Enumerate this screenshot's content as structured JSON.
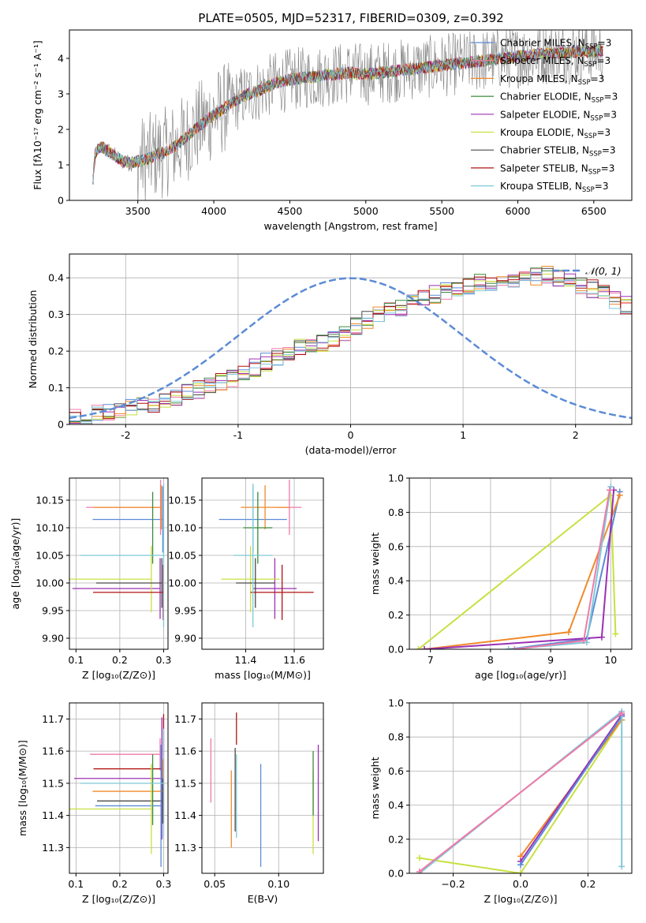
{
  "figure": {
    "title": "PLATE=0505, MJD=52317, FIBERID=0309, z=0.392"
  },
  "colors": {
    "chabrier_miles": "#5b8bd6",
    "salpeter_miles": "#f07aa8",
    "kroupa_miles": "#f08a2a",
    "chabrier_elodie": "#3c8a3c",
    "salpeter_elodie": "#9b30b5",
    "kroupa_elodie": "#c8e040",
    "chabrier_stelib": "#4a4a4a",
    "salpeter_stelib": "#b01010",
    "kroupa_stelib": "#7ec8d8",
    "noise": "#808080",
    "normal": "#5b8bd6",
    "grid": "#b0b0b0"
  },
  "chart_data": [
    {
      "id": "spectrum",
      "type": "line",
      "xlabel": "wavelength [Angstrom, rest frame]",
      "ylabel": "Flux [fλ10⁻¹⁷ erg cm⁻² s⁻¹ A⁻¹]",
      "xlim": [
        3050,
        6750
      ],
      "ylim": [
        0,
        4.8
      ],
      "xticks": [
        "3500",
        "4000",
        "4500",
        "5000",
        "5500",
        "6000",
        "6500"
      ],
      "yticks": [
        "0",
        "1",
        "2",
        "3",
        "4"
      ],
      "grid": false,
      "legend_position": "top-right",
      "continuum": {
        "x": [
          3200,
          3220,
          3260,
          3300,
          3350,
          3400,
          3450,
          3500,
          3560,
          3620,
          3680,
          3740,
          3800,
          3860,
          3920,
          3980,
          4040,
          4100,
          4200,
          4300,
          4400,
          4500,
          4600,
          4700,
          4800,
          4900,
          5000,
          5100,
          5200,
          5300,
          5400,
          5500,
          5600,
          5700,
          5800,
          5900,
          6000,
          6100,
          6200,
          6300,
          6400,
          6500
        ],
        "y": [
          0.3,
          1.35,
          1.5,
          1.4,
          1.25,
          1.1,
          1.05,
          1.1,
          1.15,
          1.3,
          1.35,
          1.5,
          1.7,
          1.95,
          2.15,
          2.35,
          2.5,
          2.7,
          2.95,
          3.1,
          3.3,
          3.4,
          3.45,
          3.5,
          3.55,
          3.6,
          3.55,
          3.6,
          3.65,
          3.7,
          3.75,
          3.8,
          3.85,
          3.9,
          3.95,
          4.0,
          4.05,
          4.1,
          4.15,
          4.15,
          4.2,
          4.2
        ]
      },
      "series": [
        {
          "name": "Chabrier MILES, N_SSP=3",
          "color_key": "chabrier_miles"
        },
        {
          "name": "Salpeter MILES, N_SSP=3",
          "color_key": "salpeter_miles"
        },
        {
          "name": "Kroupa MILES, N_SSP=3",
          "color_key": "kroupa_miles"
        },
        {
          "name": "Chabrier ELODIE, N_SSP=3",
          "color_key": "chabrier_elodie"
        },
        {
          "name": "Salpeter ELODIE, N_SSP=3",
          "color_key": "salpeter_elodie"
        },
        {
          "name": "Kroupa ELODIE, N_SSP=3",
          "color_key": "kroupa_elodie"
        },
        {
          "name": "Chabrier STELIB, N_SSP=3",
          "color_key": "chabrier_stelib"
        },
        {
          "name": "Salpeter STELIB, N_SSP=3",
          "color_key": "salpeter_stelib"
        },
        {
          "name": "Kroupa STELIB, N_SSP=3",
          "color_key": "kroupa_stelib"
        }
      ]
    },
    {
      "id": "residuals",
      "type": "histogram",
      "xlabel": "(data-model)/error",
      "ylabel": "Normed distribution",
      "xlim": [
        -2.5,
        2.5
      ],
      "ylim": [
        0,
        0.465
      ],
      "xticks": [
        -2,
        -1,
        0,
        1,
        2
      ],
      "yticks": [
        0.0,
        0.1,
        0.2,
        0.3,
        0.4
      ],
      "grid": true,
      "legend": "𝒩(0, 1)",
      "legend_position": "top-right",
      "bin_width": 0.1,
      "base_values": [
        0.02,
        0.02,
        0.03,
        0.035,
        0.04,
        0.045,
        0.05,
        0.055,
        0.06,
        0.07,
        0.085,
        0.095,
        0.105,
        0.115,
        0.125,
        0.14,
        0.155,
        0.17,
        0.185,
        0.2,
        0.21,
        0.215,
        0.22,
        0.23,
        0.25,
        0.27,
        0.285,
        0.3,
        0.31,
        0.32,
        0.33,
        0.345,
        0.355,
        0.365,
        0.375,
        0.38,
        0.385,
        0.39,
        0.39,
        0.395,
        0.4,
        0.405,
        0.41,
        0.4,
        0.39,
        0.38,
        0.37,
        0.355,
        0.34,
        0.325,
        0.3,
        0.29,
        0.275,
        0.26,
        0.24,
        0.225,
        0.21,
        0.19,
        0.18,
        0.165,
        0.155,
        0.14,
        0.13,
        0.12,
        0.105,
        0.1,
        0.09,
        0.08,
        0.075,
        0.07,
        0.06,
        0.055,
        0.05,
        0.045,
        0.04,
        0.035,
        0.03,
        0.03,
        0.025,
        0.025
      ]
    },
    {
      "id": "age_vs_z",
      "type": "errorbar",
      "xlabel": "Z [log₁₀(Z/Z⊙)]",
      "ylabel": "age  [log₁₀(age/yr)]",
      "xlim": [
        0.085,
        0.31
      ],
      "ylim": [
        9.88,
        10.19
      ],
      "xticks": [
        "0.1",
        "0.2",
        "0.3"
      ],
      "yticks": [
        "9.90",
        "9.95",
        "10.00",
        "10.05",
        "10.10",
        "10.15"
      ],
      "grid": true,
      "points": [
        {
          "color_key": "chabrier_miles",
          "x": 0.298,
          "xerr_lo": 0.16,
          "y": 10.115,
          "yerr": 0.06
        },
        {
          "color_key": "salpeter_miles",
          "x": 0.293,
          "xerr_lo": 0.17,
          "y": 10.137,
          "yerr": 0.05
        },
        {
          "color_key": "kroupa_miles",
          "x": 0.295,
          "xerr_lo": 0.155,
          "y": 10.137,
          "yerr": 0.04
        },
        {
          "color_key": "chabrier_elodie",
          "x": 0.275,
          "xerr_lo": 0.0,
          "y": 10.1,
          "yerr": 0.065
        },
        {
          "color_key": "salpeter_elodie",
          "x": 0.292,
          "xerr_lo": 0.2,
          "y": 9.99,
          "yerr": 0.055
        },
        {
          "color_key": "kroupa_elodie",
          "x": 0.272,
          "xerr_lo": 0.2,
          "y": 10.007,
          "yerr": 0.06
        },
        {
          "color_key": "chabrier_stelib",
          "x": 0.296,
          "xerr_lo": 0.15,
          "y": 10.0,
          "yerr": 0.045
        },
        {
          "color_key": "salpeter_stelib",
          "x": 0.299,
          "xerr_lo": 0.16,
          "y": 9.983,
          "yerr": 0.05
        },
        {
          "color_key": "kroupa_stelib",
          "x": 0.3,
          "xerr_lo": 0.19,
          "y": 10.05,
          "yerr": 0.13
        }
      ]
    },
    {
      "id": "age_vs_mass",
      "type": "errorbar",
      "xlabel": "mass [log₁₀(M/M⊙)]",
      "ylabel": "",
      "xlim": [
        11.22,
        11.72
      ],
      "ylim": [
        9.88,
        10.19
      ],
      "xticks": [
        "11.4",
        "11.6"
      ],
      "yticks": [
        "9.90",
        "9.95",
        "10.00",
        "10.05",
        "10.10",
        "10.15"
      ],
      "grid": true,
      "points": [
        {
          "color_key": "chabrier_miles",
          "x": 11.43,
          "xerr": 0.14,
          "y": 10.115,
          "yerr": 0.06
        },
        {
          "color_key": "salpeter_miles",
          "x": 11.58,
          "xerr": 0.05,
          "y": 10.137,
          "yerr": 0.05
        },
        {
          "color_key": "kroupa_miles",
          "x": 11.48,
          "xerr": 0.1,
          "y": 10.137,
          "yerr": 0.04
        },
        {
          "color_key": "chabrier_elodie",
          "x": 11.45,
          "xerr": 0.06,
          "y": 10.1,
          "yerr": 0.065
        },
        {
          "color_key": "salpeter_elodie",
          "x": 11.52,
          "xerr": 0.09,
          "y": 9.99,
          "yerr": 0.055
        },
        {
          "color_key": "kroupa_elodie",
          "x": 11.42,
          "xerr": 0.12,
          "y": 10.007,
          "yerr": 0.06
        },
        {
          "color_key": "chabrier_stelib",
          "x": 11.44,
          "xerr": 0.08,
          "y": 10.0,
          "yerr": 0.045
        },
        {
          "color_key": "salpeter_stelib",
          "x": 11.55,
          "xerr": 0.13,
          "y": 9.983,
          "yerr": 0.05
        },
        {
          "color_key": "kroupa_stelib",
          "x": 11.43,
          "xerr": 0.08,
          "y": 10.05,
          "yerr": 0.13
        }
      ]
    },
    {
      "id": "weight_vs_age",
      "type": "line",
      "xlabel": "age  [log₁₀(age/yr)]",
      "ylabel": "mass weight",
      "xlim": [
        6.65,
        10.35
      ],
      "ylim": [
        0,
        1.0
      ],
      "xticks": [
        7,
        8,
        9,
        10
      ],
      "yticks": [
        "0.0",
        "0.2",
        "0.4",
        "0.6",
        "0.8",
        "1.0"
      ],
      "grid": true,
      "series": [
        {
          "color_key": "kroupa_elodie",
          "x": [
            6.8,
            10.0,
            10.08
          ],
          "y": [
            0.0,
            0.9,
            0.09
          ]
        },
        {
          "color_key": "chabrier_miles",
          "x": [
            8.3,
            9.6,
            10.15
          ],
          "y": [
            0.0,
            0.06,
            0.92
          ]
        },
        {
          "color_key": "kroupa_miles",
          "x": [
            6.9,
            9.3,
            10.15
          ],
          "y": [
            0.0,
            0.1,
            0.9
          ]
        },
        {
          "color_key": "salpeter_elodie",
          "x": [
            6.9,
            9.85,
            10.05
          ],
          "y": [
            0.0,
            0.07,
            0.93
          ]
        },
        {
          "color_key": "kroupa_stelib",
          "x": [
            8.3,
            9.6,
            10.0
          ],
          "y": [
            0.0,
            0.04,
            0.95
          ]
        },
        {
          "color_key": "salpeter_miles",
          "x": [
            8.4,
            9.55,
            9.98
          ],
          "y": [
            0.0,
            0.05,
            0.93
          ]
        }
      ]
    },
    {
      "id": "mass_vs_z",
      "type": "errorbar",
      "xlabel": "Z [log₁₀(Z/Z⊙)]",
      "ylabel": "mass [log₁₀(M/M⊙)]",
      "xlim": [
        0.085,
        0.31
      ],
      "ylim": [
        11.22,
        11.75
      ],
      "xticks": [
        "0.1",
        "0.2",
        "0.3"
      ],
      "yticks": [
        "11.3",
        "11.4",
        "11.5",
        "11.6",
        "11.7"
      ],
      "grid": true,
      "points": [
        {
          "color_key": "salpeter_miles",
          "x": 0.292,
          "xerr_lo": 0.16,
          "y": 11.59,
          "yerr": 0.05
        },
        {
          "color_key": "salpeter_stelib",
          "x": 0.3,
          "xerr_lo": 0.16,
          "y": 11.545,
          "yerr": 0.17
        },
        {
          "color_key": "salpeter_elodie",
          "x": 0.296,
          "xerr_lo": 0.2,
          "y": 11.515,
          "yerr": 0.19
        },
        {
          "color_key": "kroupa_miles",
          "x": 0.298,
          "xerr_lo": 0.16,
          "y": 11.475,
          "yerr": 0.1
        },
        {
          "color_key": "chabrier_elodie",
          "x": 0.275,
          "xerr_lo": 0.0,
          "y": 11.48,
          "yerr": 0.11
        },
        {
          "color_key": "chabrier_stelib",
          "x": 0.298,
          "xerr_lo": 0.15,
          "y": 11.445,
          "yerr": 0.07
        },
        {
          "color_key": "chabrier_miles",
          "x": 0.294,
          "xerr_lo": 0.15,
          "y": 11.43,
          "yerr": 0.19
        },
        {
          "color_key": "kroupa_elodie",
          "x": 0.272,
          "xerr_lo": 0.19,
          "y": 11.42,
          "yerr": 0.14
        },
        {
          "color_key": "kroupa_stelib",
          "x": 0.3,
          "xerr_lo": 0.19,
          "y": 11.5,
          "yerr": 0.17
        }
      ]
    },
    {
      "id": "mass_vs_ebv",
      "type": "errorbar",
      "xlabel": "E(B-V)",
      "ylabel": "",
      "xlim": [
        0.04,
        0.135
      ],
      "ylim": [
        11.22,
        11.75
      ],
      "xticks": [
        "0.05",
        "0.10"
      ],
      "yticks": [
        "11.3",
        "11.4",
        "11.5",
        "11.6",
        "11.7"
      ],
      "grid": true,
      "points": [
        {
          "color_key": "salpeter_miles",
          "x": 0.047,
          "y": 11.54,
          "yerr": 0.1
        },
        {
          "color_key": "kroupa_miles",
          "x": 0.063,
          "y": 11.42,
          "yerr": 0.12
        },
        {
          "color_key": "chabrier_stelib",
          "x": 0.066,
          "y": 11.48,
          "yerr": 0.13
        },
        {
          "color_key": "salpeter_stelib",
          "x": 0.067,
          "y": 11.67,
          "yerr": 0.05
        },
        {
          "color_key": "kroupa_stelib",
          "x": 0.067,
          "y": 11.46,
          "yerr": 0.13
        },
        {
          "color_key": "chabrier_miles",
          "x": 0.086,
          "y": 11.4,
          "yerr": 0.16
        },
        {
          "color_key": "kroupa_elodie",
          "x": 0.127,
          "y": 11.41,
          "yerr": 0.13
        },
        {
          "color_key": "chabrier_elodie",
          "x": 0.127,
          "y": 11.5,
          "yerr": 0.1
        },
        {
          "color_key": "salpeter_elodie",
          "x": 0.131,
          "y": 11.47,
          "yerr": 0.15
        }
      ]
    },
    {
      "id": "weight_vs_z",
      "type": "line",
      "xlabel": "Z [log₁₀(Z/Z⊙)]",
      "ylabel": "mass weight",
      "xlim": [
        -0.33,
        0.33
      ],
      "ylim": [
        0,
        1.0
      ],
      "xticks": [
        "−0.2",
        "0.0",
        "0.2"
      ],
      "yticks": [
        "0.0",
        "0.2",
        "0.4",
        "0.6",
        "0.8",
        "1.0"
      ],
      "grid": true,
      "series": [
        {
          "color_key": "kroupa_elodie",
          "x": [
            -0.3,
            0.0,
            0.3
          ],
          "y": [
            0.09,
            0.0,
            0.9
          ]
        },
        {
          "color_key": "kroupa_miles",
          "x": [
            0.0,
            0.3
          ],
          "y": [
            0.1,
            0.9
          ]
        },
        {
          "color_key": "salpeter_elodie",
          "x": [
            0.0,
            0.3
          ],
          "y": [
            0.07,
            0.93
          ]
        },
        {
          "color_key": "chabrier_miles",
          "x": [
            0.0,
            0.3
          ],
          "y": [
            0.05,
            0.92
          ]
        },
        {
          "color_key": "kroupa_stelib",
          "x": [
            -0.3,
            0.3,
            0.3
          ],
          "y": [
            0.0,
            0.95,
            0.04
          ]
        },
        {
          "color_key": "salpeter_miles",
          "x": [
            -0.3,
            0.3
          ],
          "y": [
            0.01,
            0.94
          ]
        }
      ]
    }
  ]
}
